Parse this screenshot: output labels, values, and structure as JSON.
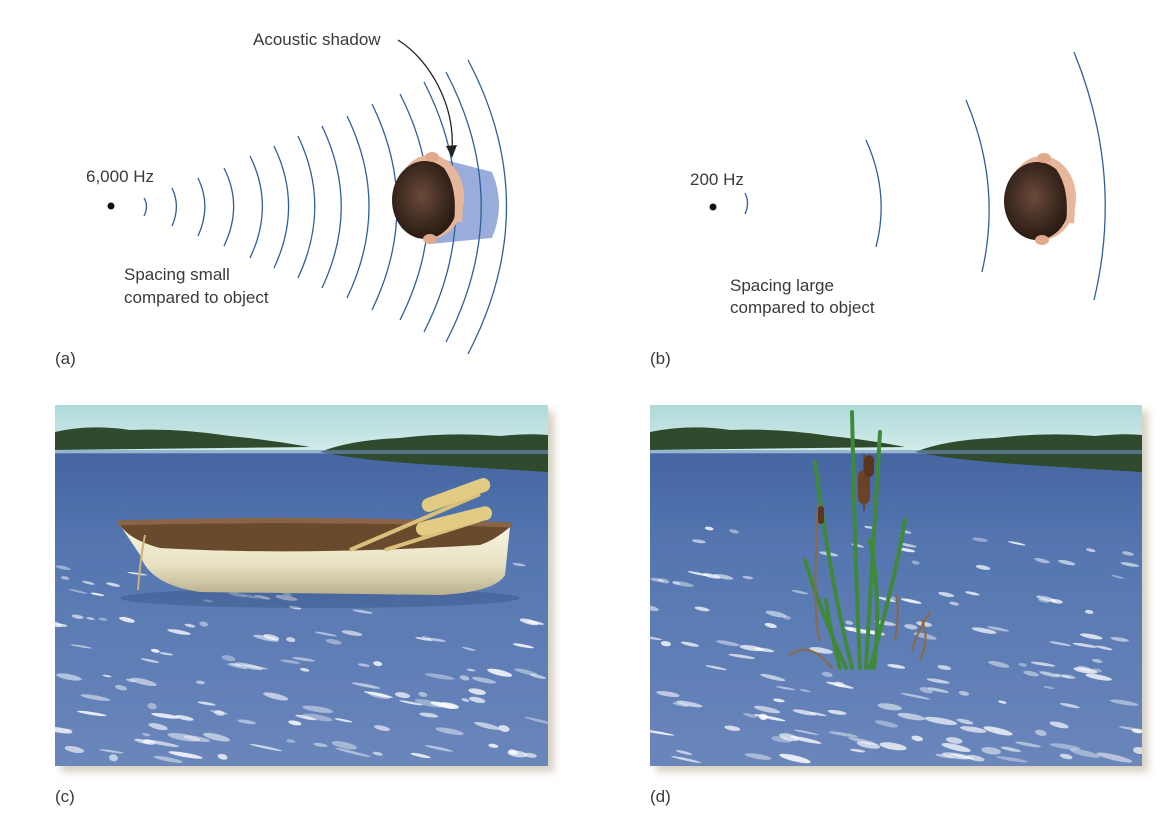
{
  "panels": {
    "a": {
      "letter": "(a)",
      "frequency": "6,000 Hz",
      "callout": "Acoustic shadow",
      "caption_line1": "Spacing small",
      "caption_line2": "compared to object"
    },
    "b": {
      "letter": "(b)",
      "frequency": "200 Hz",
      "caption_line1": "Spacing large",
      "caption_line2": "compared to object"
    },
    "c": {
      "letter": "(c)"
    },
    "d": {
      "letter": "(d)"
    }
  },
  "colors": {
    "wave": "#2f5f98",
    "shadow": "#8ea4d8",
    "sky": "#bfe0e0",
    "treeline": "#2f4a2c",
    "water": "#4f6fa8",
    "boat": "#e8e2c6",
    "oar": "#e2cc84",
    "reed": "#3f8a3a"
  },
  "icons": {
    "head": "head-top-view-icon",
    "source": "sound-source-dot-icon"
  }
}
